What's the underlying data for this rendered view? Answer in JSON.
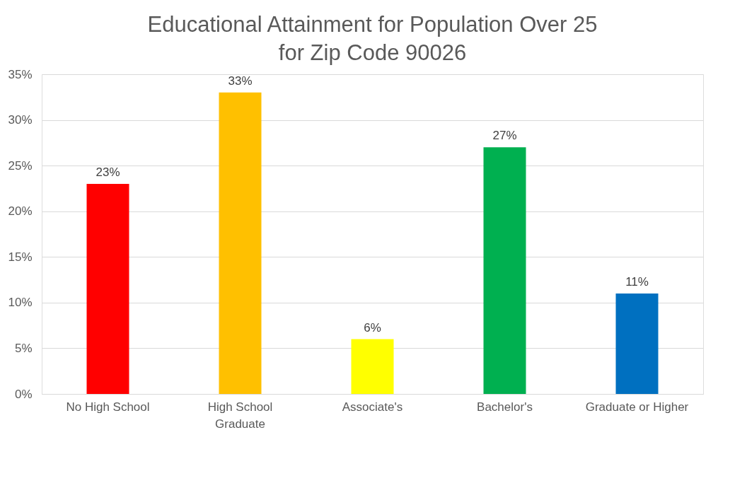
{
  "chart_data": {
    "type": "bar",
    "title": "Educational Attainment for Population Over 25 for Zip Code 90026",
    "categories": [
      "No High School",
      "High School Graduate",
      "Associate's",
      "Bachelor's",
      "Graduate or Higher"
    ],
    "values": [
      23,
      33,
      6,
      27,
      11
    ],
    "colors": [
      "#ff0000",
      "#ffc000",
      "#ffff00",
      "#00b050",
      "#0070c0"
    ],
    "value_labels": [
      "23%",
      "33%",
      "6%",
      "27%",
      "11%"
    ],
    "ylim": [
      0,
      35
    ],
    "yticks": [
      {
        "value": 0,
        "label": "0%"
      },
      {
        "value": 5,
        "label": "5%"
      },
      {
        "value": 10,
        "label": "10%"
      },
      {
        "value": 15,
        "label": "15%"
      },
      {
        "value": 20,
        "label": "20%"
      },
      {
        "value": 25,
        "label": "25%"
      },
      {
        "value": 30,
        "label": "30%"
      },
      {
        "value": 35,
        "label": "35%"
      }
    ],
    "grid": "y",
    "legend": false
  }
}
